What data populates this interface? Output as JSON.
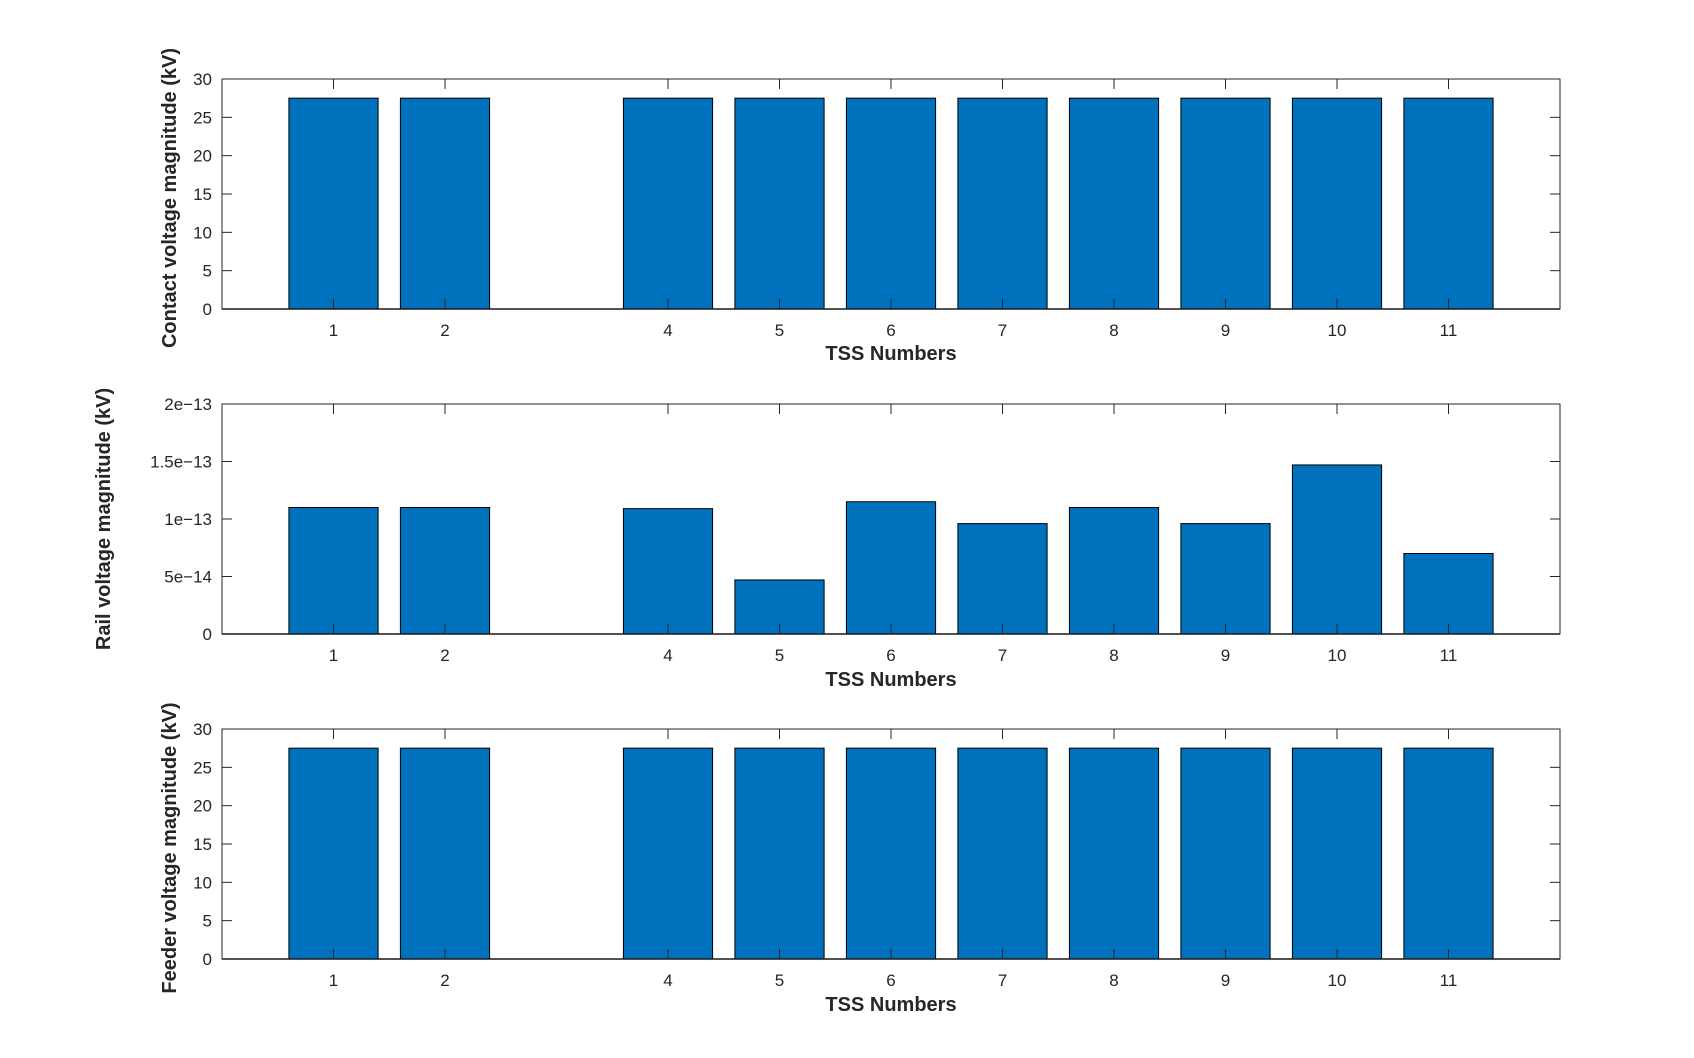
{
  "chart_data": [
    {
      "type": "bar",
      "xlabel": "TSS Numbers",
      "ylabel": "Contact voltage magnitude (kV)",
      "x": [
        1,
        2,
        4,
        5,
        6,
        7,
        8,
        9,
        10,
        11
      ],
      "values": [
        27.5,
        27.5,
        27.5,
        27.5,
        27.5,
        27.5,
        27.5,
        27.5,
        27.5,
        27.5
      ],
      "xlim": [
        0,
        12
      ],
      "ylim": [
        0,
        30
      ],
      "yticks": [
        0,
        5,
        10,
        15,
        20,
        25,
        30
      ],
      "ytick_labels": [
        "0",
        "5",
        "10",
        "15",
        "20",
        "25",
        "30"
      ],
      "bar_color": "#0072BD",
      "grid": false,
      "legend": false
    },
    {
      "type": "bar",
      "xlabel": "TSS Numbers",
      "ylabel": "Rail voltage magnitude (kV)",
      "x": [
        1,
        2,
        4,
        5,
        6,
        7,
        8,
        9,
        10,
        11
      ],
      "values": [
        1.1e-13,
        1.1e-13,
        1.09e-13,
        4.7e-14,
        1.15e-13,
        9.6e-14,
        1.1e-13,
        9.6e-14,
        1.47e-13,
        7e-14
      ],
      "xlim": [
        0,
        12
      ],
      "ylim": [
        0,
        2e-13
      ],
      "yticks": [
        0,
        5e-14,
        1e-13,
        1.5e-13,
        2e-13
      ],
      "ytick_labels": [
        "0",
        "5e−14",
        "1e−13",
        "1.5e−13",
        "2e−13"
      ],
      "bar_color": "#0072BD",
      "grid": false,
      "legend": false
    },
    {
      "type": "bar",
      "xlabel": "TSS Numbers",
      "ylabel": "Feeder voltage magnitude (kV)",
      "x": [
        1,
        2,
        4,
        5,
        6,
        7,
        8,
        9,
        10,
        11
      ],
      "values": [
        27.5,
        27.5,
        27.5,
        27.5,
        27.5,
        27.5,
        27.5,
        27.5,
        27.5,
        27.5
      ],
      "xlim": [
        0,
        12
      ],
      "ylim": [
        0,
        30
      ],
      "yticks": [
        0,
        5,
        10,
        15,
        20,
        25,
        30
      ],
      "ytick_labels": [
        "0",
        "5",
        "10",
        "15",
        "20",
        "25",
        "30"
      ],
      "bar_color": "#0072BD",
      "grid": false,
      "legend": false
    }
  ]
}
